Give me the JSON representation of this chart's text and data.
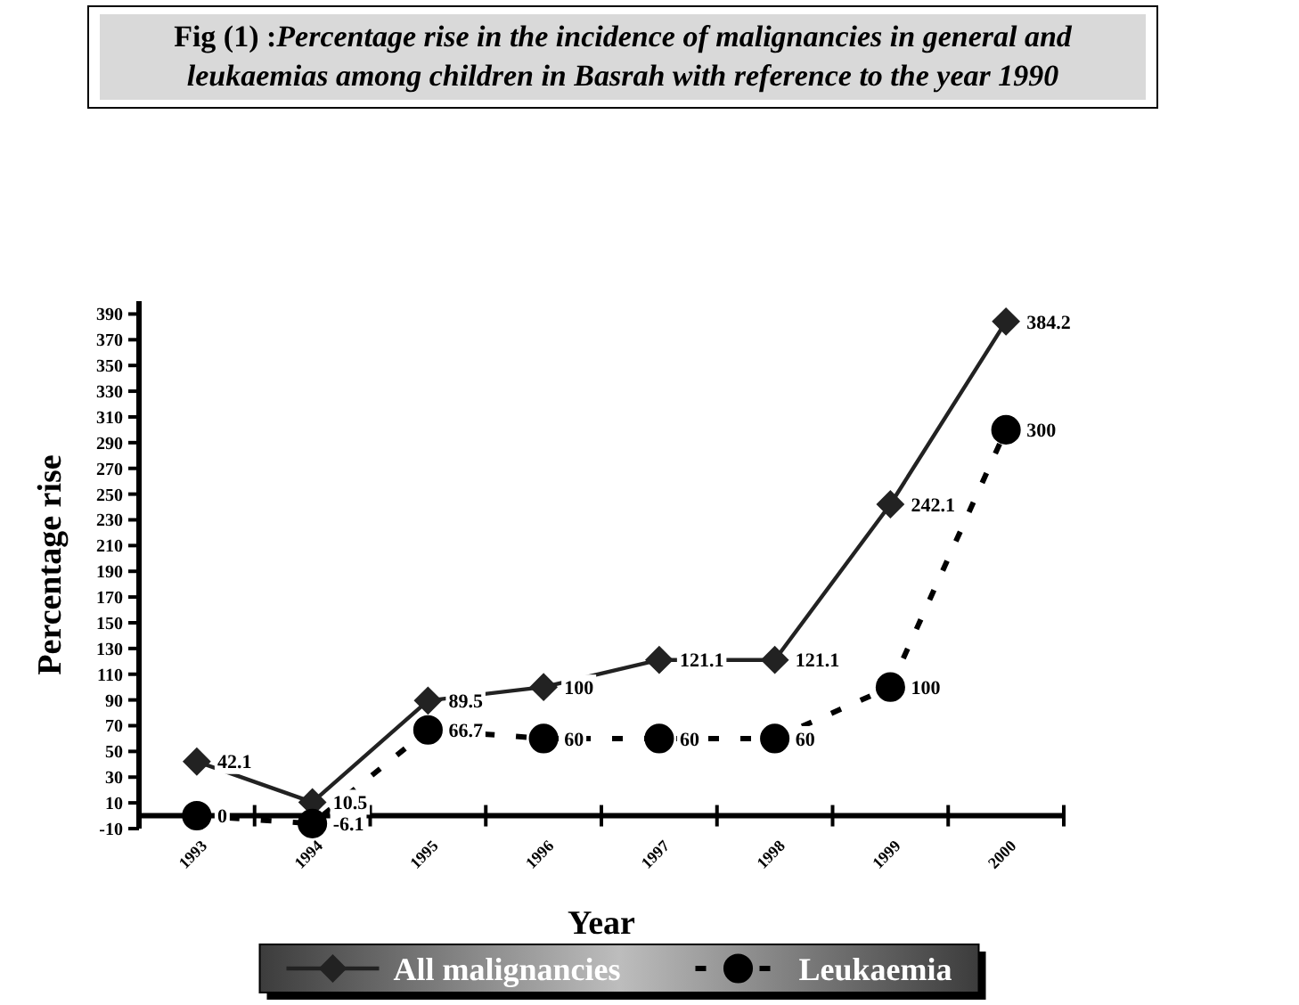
{
  "chart_data": {
    "type": "line",
    "title": "Fig (1) :Percentage rise in the incidence of malignancies in general and leukaemias among children in Basrah with reference to the year 1990",
    "xlabel": "Year",
    "ylabel": "Percentage rise",
    "categories": [
      "1993",
      "1994",
      "1995",
      "1996",
      "1997",
      "1998",
      "1999",
      "2000"
    ],
    "series": [
      {
        "name": "All malignancies",
        "color": "#222222",
        "marker": "diamond",
        "line_style": "solid",
        "values": [
          42.1,
          10.5,
          89.5,
          100,
          121.1,
          121.1,
          242.1,
          384.2
        ]
      },
      {
        "name": "Leukaemia",
        "color": "#000000",
        "marker": "circle",
        "line_style": "dashed",
        "values": [
          0,
          -6.1,
          66.7,
          60,
          60,
          60,
          100,
          300
        ]
      }
    ],
    "ylim": [
      -10,
      400
    ],
    "yticks": [
      -10,
      10,
      30,
      50,
      70,
      90,
      110,
      130,
      150,
      170,
      190,
      210,
      230,
      250,
      270,
      290,
      310,
      330,
      350,
      370,
      390
    ],
    "data_labels": true,
    "grid": false,
    "legend": "bottom"
  }
}
